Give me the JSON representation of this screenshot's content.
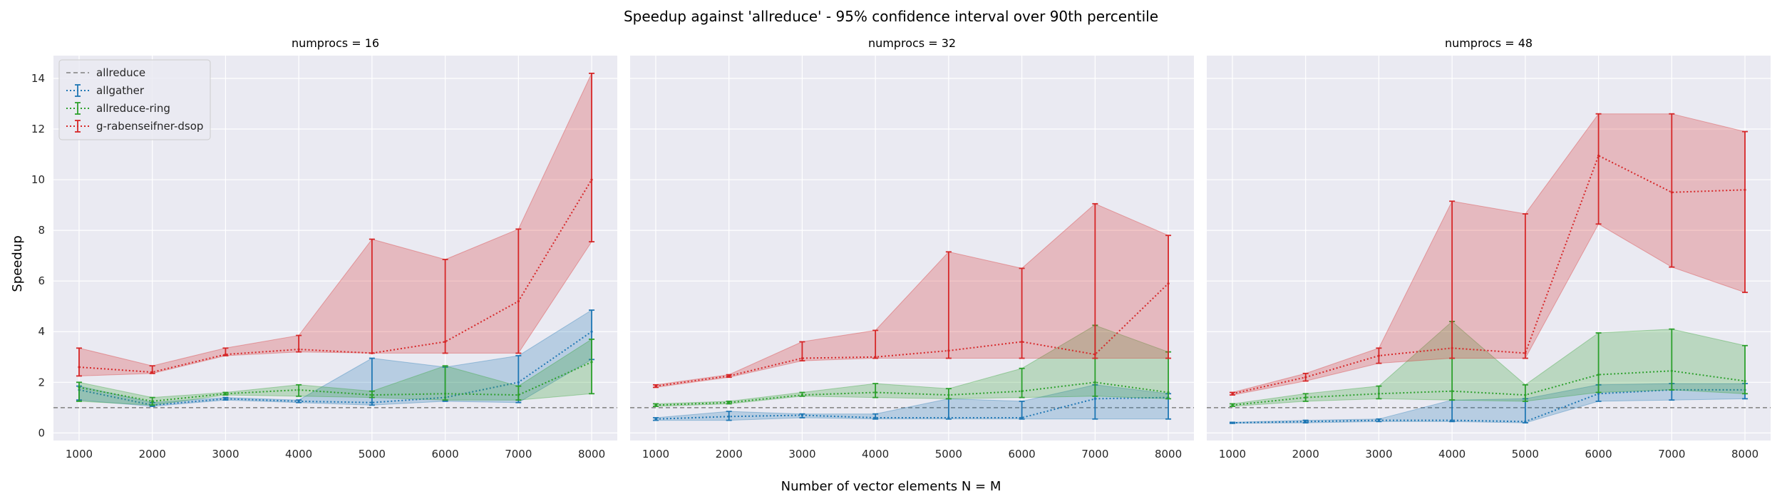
{
  "figure": {
    "suptitle": "Speedup against 'allreduce' - 95% confidence interval over 90th percentile",
    "xlabel": "Number of vector elements N = M",
    "ylabel": "Speedup"
  },
  "colors": {
    "allreduce": "#808080",
    "allgather": "#1f77b4",
    "allreduce-ring": "#2ca02c",
    "g-rabenseifner-dsop": "#d62728",
    "plot_background": "#eaeaf2",
    "grid": "#ffffff"
  },
  "legend": {
    "placement": "top-left of first panel",
    "entries": [
      "allreduce",
      "allgather",
      "allreduce-ring",
      "g-rabenseifner-dsop"
    ]
  },
  "chart_data": [
    {
      "type": "line",
      "title": "numprocs = 16",
      "x": [
        1000,
        2000,
        3000,
        4000,
        5000,
        6000,
        7000,
        8000
      ],
      "xticks": [
        1000,
        2000,
        3000,
        4000,
        5000,
        6000,
        7000,
        8000
      ],
      "yticks": [
        0,
        2,
        4,
        6,
        8,
        10,
        12,
        14
      ],
      "ylim": [
        -0.3,
        14.9
      ],
      "xlim": [
        650,
        8350
      ],
      "grid": true,
      "reference_line": {
        "name": "allreduce",
        "y": 1.0,
        "style": "dashed"
      },
      "series": [
        {
          "name": "allgather",
          "y": [
            1.7,
            1.1,
            1.35,
            1.25,
            1.2,
            1.4,
            2.0,
            4.0
          ],
          "lower": [
            1.3,
            1.05,
            1.3,
            1.2,
            1.1,
            1.25,
            1.2,
            2.9
          ],
          "upper": [
            1.85,
            1.2,
            1.4,
            1.3,
            2.95,
            2.6,
            3.05,
            4.85
          ]
        },
        {
          "name": "allreduce-ring",
          "y": [
            1.8,
            1.25,
            1.55,
            1.7,
            1.5,
            1.55,
            1.5,
            2.8
          ],
          "lower": [
            1.25,
            1.1,
            1.5,
            1.45,
            1.4,
            1.3,
            1.3,
            1.55
          ],
          "upper": [
            2.0,
            1.4,
            1.6,
            1.9,
            1.65,
            2.65,
            1.85,
            3.7
          ]
        },
        {
          "name": "g-rabenseifner-dsop",
          "y": [
            2.6,
            2.4,
            3.1,
            3.3,
            3.15,
            3.6,
            5.2,
            10.0
          ],
          "lower": [
            2.25,
            2.35,
            3.05,
            3.2,
            3.15,
            3.15,
            3.15,
            7.55
          ],
          "upper": [
            3.35,
            2.65,
            3.35,
            3.85,
            7.65,
            6.85,
            8.05,
            14.2
          ]
        }
      ]
    },
    {
      "type": "line",
      "title": "numprocs = 32",
      "x": [
        1000,
        2000,
        3000,
        4000,
        5000,
        6000,
        7000,
        8000
      ],
      "xticks": [
        1000,
        2000,
        3000,
        4000,
        5000,
        6000,
        7000,
        8000
      ],
      "yticks": [
        0,
        2,
        4,
        6,
        8,
        10,
        12,
        14
      ],
      "ylim": [
        -0.3,
        14.9
      ],
      "xlim": [
        650,
        8350
      ],
      "grid": true,
      "reference_line": {
        "name": "allreduce",
        "y": 1.0,
        "style": "dashed"
      },
      "series": [
        {
          "name": "allgather",
          "y": [
            0.55,
            0.65,
            0.7,
            0.6,
            0.6,
            0.6,
            1.35,
            1.4
          ],
          "lower": [
            0.5,
            0.5,
            0.6,
            0.55,
            0.55,
            0.55,
            0.55,
            0.55
          ],
          "upper": [
            0.6,
            0.85,
            0.75,
            0.75,
            1.35,
            1.25,
            1.9,
            1.55
          ]
        },
        {
          "name": "allreduce-ring",
          "y": [
            1.1,
            1.2,
            1.5,
            1.6,
            1.5,
            1.65,
            2.0,
            1.6
          ],
          "lower": [
            1.05,
            1.15,
            1.45,
            1.4,
            1.35,
            1.4,
            1.45,
            1.35
          ],
          "upper": [
            1.15,
            1.25,
            1.6,
            1.95,
            1.75,
            2.55,
            4.25,
            3.2
          ]
        },
        {
          "name": "g-rabenseifner-dsop",
          "y": [
            1.85,
            2.25,
            2.95,
            3.0,
            3.25,
            3.6,
            3.1,
            5.9
          ],
          "lower": [
            1.8,
            2.2,
            2.85,
            2.95,
            2.95,
            2.95,
            2.95,
            2.95
          ],
          "upper": [
            1.9,
            2.3,
            3.6,
            4.05,
            7.15,
            6.5,
            9.05,
            7.8
          ]
        }
      ]
    },
    {
      "type": "line",
      "title": "numprocs = 48",
      "x": [
        1000,
        2000,
        3000,
        4000,
        5000,
        6000,
        7000,
        8000
      ],
      "xticks": [
        1000,
        2000,
        3000,
        4000,
        5000,
        6000,
        7000,
        8000
      ],
      "yticks": [
        0,
        2,
        4,
        6,
        8,
        10,
        12,
        14
      ],
      "ylim": [
        -0.3,
        14.9
      ],
      "xlim": [
        650,
        8350
      ],
      "grid": true,
      "reference_line": {
        "name": "allreduce",
        "y": 1.0,
        "style": "dashed"
      },
      "series": [
        {
          "name": "allgather",
          "y": [
            0.4,
            0.45,
            0.5,
            0.5,
            0.45,
            1.55,
            1.7,
            1.7
          ],
          "lower": [
            0.38,
            0.4,
            0.45,
            0.45,
            0.4,
            1.25,
            1.3,
            1.35
          ],
          "upper": [
            0.42,
            0.5,
            0.55,
            1.3,
            1.35,
            1.9,
            1.95,
            1.95
          ]
        },
        {
          "name": "allreduce-ring",
          "y": [
            1.1,
            1.4,
            1.55,
            1.65,
            1.5,
            2.3,
            2.45,
            2.05
          ],
          "lower": [
            1.05,
            1.25,
            1.35,
            1.3,
            1.25,
            1.6,
            1.7,
            1.55
          ],
          "upper": [
            1.15,
            1.55,
            1.85,
            4.4,
            1.9,
            3.95,
            4.1,
            3.45
          ]
        },
        {
          "name": "g-rabenseifner-dsop",
          "y": [
            1.55,
            2.2,
            3.05,
            3.35,
            3.15,
            10.95,
            9.5,
            9.6
          ],
          "lower": [
            1.5,
            2.05,
            2.75,
            2.95,
            2.95,
            8.25,
            6.55,
            5.55
          ],
          "upper": [
            1.6,
            2.35,
            3.35,
            9.15,
            8.65,
            12.6,
            12.6,
            11.9
          ]
        }
      ]
    }
  ]
}
